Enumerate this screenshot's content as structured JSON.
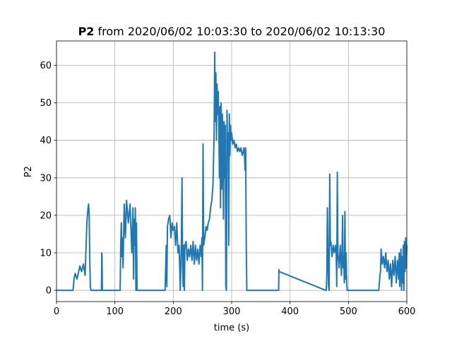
{
  "chart_data": {
    "type": "line",
    "title_bold": "P2",
    "title_rest": " from 2020/06/02 10:03:30 to 2020/06/02 10:13:30",
    "xlabel": "time (s)",
    "ylabel": "P2",
    "xlim": [
      0,
      600
    ],
    "ylim": [
      -3,
      66.5
    ],
    "x_ticks": [
      0,
      100,
      200,
      300,
      400,
      500,
      600
    ],
    "y_ticks": [
      0,
      10,
      20,
      30,
      40,
      50,
      60
    ],
    "grid": true,
    "series": [
      {
        "color": "#1f77b4",
        "x": [
          0,
          28,
          29,
          30,
          32,
          35,
          38,
          40,
          43,
          46,
          49,
          52,
          54,
          55,
          56,
          57,
          58,
          59,
          60,
          77,
          77.5,
          78,
          78.5,
          109,
          110,
          111,
          112,
          113,
          114,
          116,
          118,
          120,
          123,
          126,
          129,
          131,
          132,
          133,
          134,
          135,
          136,
          137,
          138,
          139,
          140,
          186,
          187,
          188,
          189,
          190,
          192,
          194,
          196,
          198,
          200,
          202,
          204,
          206,
          208,
          210,
          212,
          214,
          215,
          216,
          217,
          218,
          219,
          220,
          222,
          224,
          226,
          228,
          230,
          232,
          234,
          236,
          238,
          240,
          242,
          244,
          246,
          248,
          249,
          250,
          251,
          252,
          254,
          256,
          258,
          260,
          262,
          264,
          266,
          268,
          270,
          271,
          272,
          273,
          274,
          275,
          276,
          277,
          278,
          279,
          280,
          281,
          282,
          283,
          284,
          285,
          286,
          287,
          288,
          289,
          290,
          291,
          292,
          293,
          294,
          295,
          296,
          297,
          298,
          299,
          300,
          302,
          304,
          306,
          308,
          310,
          312,
          314,
          316,
          318,
          320,
          321,
          322,
          323,
          324,
          325,
          326,
          380,
          380.5,
          381,
          381.5,
          461,
          462,
          463,
          464,
          465,
          466,
          467,
          468,
          469,
          470,
          472,
          474,
          476,
          478,
          479,
          480,
          481,
          482,
          484,
          486,
          488,
          489,
          490,
          491,
          492,
          493,
          494,
          495,
          496,
          497,
          498,
          550,
          552,
          553,
          554,
          555,
          556,
          558,
          560,
          562,
          564,
          566,
          568,
          570,
          572,
          574,
          576,
          578,
          580,
          582,
          584,
          586,
          587,
          588,
          589,
          590,
          591,
          592,
          593,
          594,
          595,
          596,
          597,
          598,
          599,
          600
        ],
        "y": [
          0,
          0,
          1,
          3,
          4.5,
          3,
          5,
          6.5,
          5,
          7,
          4,
          18,
          22,
          23,
          20,
          8,
          1,
          0,
          0,
          0,
          10,
          9,
          0,
          0,
          12,
          18,
          9,
          14,
          6,
          23,
          14,
          24,
          18,
          23,
          10,
          22,
          3,
          19,
          12,
          22,
          0,
          18,
          0,
          0,
          0,
          0,
          6,
          12,
          1,
          17,
          19,
          20,
          14,
          18,
          16,
          17,
          12,
          18,
          10,
          12,
          0,
          14,
          30,
          6,
          1,
          12,
          0,
          12,
          13,
          8,
          11,
          9,
          12,
          8,
          13,
          7,
          12,
          8,
          11,
          7,
          12,
          9,
          14,
          0,
          39,
          12,
          14,
          17,
          16,
          18,
          19,
          22,
          24,
          28,
          42,
          63.5,
          45,
          58,
          40,
          55,
          47,
          53,
          44,
          30,
          49,
          22,
          50,
          27,
          47,
          41,
          19,
          45,
          30,
          44,
          1,
          0,
          48,
          38,
          42,
          12,
          47,
          36,
          44,
          40,
          42,
          39,
          40,
          38,
          39,
          37,
          38,
          37,
          38,
          36,
          37,
          38,
          36,
          32,
          38,
          12,
          0,
          0,
          0,
          5.5,
          5,
          0,
          0,
          4,
          22,
          10,
          1,
          0,
          31,
          12,
          13,
          9,
          12,
          10,
          12,
          11,
          1,
          31.5,
          10,
          6,
          12,
          4,
          10,
          20,
          6,
          9,
          2,
          21,
          3,
          10,
          2,
          0,
          0,
          0,
          2,
          4,
          5,
          11,
          7,
          9,
          6,
          10,
          5,
          8,
          3,
          7,
          1,
          8,
          4,
          9,
          2,
          8,
          3,
          10,
          1,
          7,
          11,
          0,
          9,
          2,
          12,
          0,
          13,
          5,
          14,
          6,
          12
        ]
      }
    ]
  }
}
